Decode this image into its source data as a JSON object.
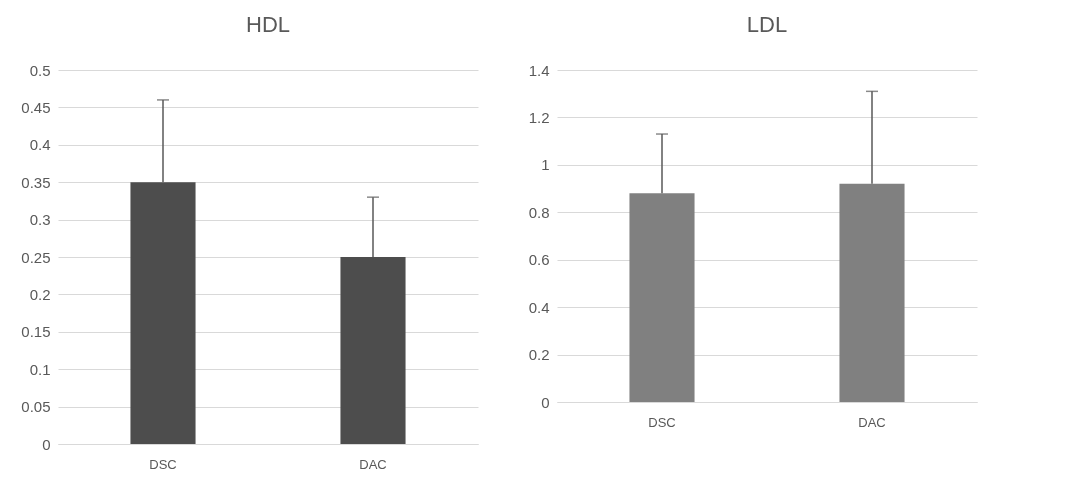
{
  "chart_data": [
    {
      "type": "bar",
      "title": "HDL",
      "categories": [
        "DSC",
        "DAC"
      ],
      "values": [
        0.35,
        0.25
      ],
      "errors": [
        [
          0.35,
          0.46
        ],
        [
          0.25,
          0.33
        ]
      ],
      "color": "#4d4d4d",
      "ylim": [
        0,
        0.5
      ],
      "yticks": [
        0,
        0.05,
        0.1,
        0.15,
        0.2,
        0.25,
        0.3,
        0.35,
        0.4,
        0.45,
        0.5
      ],
      "grid": "y"
    },
    {
      "type": "bar",
      "title": "LDL",
      "categories": [
        "DSC",
        "DAC"
      ],
      "values": [
        0.88,
        0.92
      ],
      "errors": [
        [
          0.88,
          1.13
        ],
        [
          0.92,
          1.31
        ]
      ],
      "color": "#808080",
      "ylim": [
        0,
        1.4
      ],
      "yticks": [
        0,
        0.2,
        0.4,
        0.6,
        0.8,
        1,
        1.2,
        1.4
      ],
      "grid": "y"
    }
  ]
}
